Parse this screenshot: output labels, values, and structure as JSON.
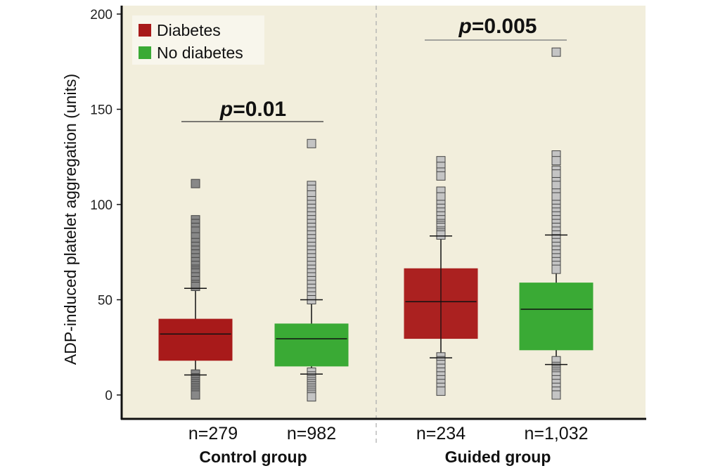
{
  "chart_data": {
    "type": "box",
    "ylabel": "ADP-induced platelet aggregation (units)",
    "ylim": [
      0,
      200
    ],
    "yticks": [
      0,
      50,
      100,
      150,
      200
    ],
    "legend": {
      "placement": "top-left",
      "entries": [
        {
          "label": "Diabetes",
          "color": "#a81a1a"
        },
        {
          "label": "No diabetes",
          "color": "#3aaa35"
        }
      ]
    },
    "groups": [
      {
        "label": "Control group",
        "p_value": "=0.01",
        "p_symbol": "p",
        "boxes": [
          {
            "series": "Diabetes",
            "n_label": "n=279",
            "q1": 18,
            "median": 32,
            "q3": 40,
            "whisker_low": 10.5,
            "whisker_high": 56,
            "outliers": [
              111,
              92,
              90,
              88,
              86,
              83,
              80,
              78,
              76,
              74,
              72,
              70,
              68,
              66,
              65,
              64,
              62,
              60,
              58,
              57,
              11,
              9,
              7,
              6,
              5,
              4,
              3,
              2,
              1,
              0
            ]
          },
          {
            "series": "No diabetes",
            "n_label": "n=982",
            "q1": 15,
            "median": 29.5,
            "q3": 37.5,
            "whisker_low": 11,
            "whisker_high": 50,
            "outliers": [
              132,
              110,
              108,
              105,
              102,
              100,
              98,
              96,
              94,
              92,
              90,
              88,
              86,
              84,
              82,
              80,
              78,
              76,
              74,
              72,
              70,
              68,
              66,
              64,
              62,
              60,
              58,
              56,
              54,
              52,
              50,
              12,
              10,
              8,
              7,
              6,
              5,
              4,
              3,
              2,
              1,
              0,
              -1
            ]
          }
        ]
      },
      {
        "label": "Guided group",
        "p_value": "=0.005",
        "p_symbol": "p",
        "boxes": [
          {
            "series": "Diabetes",
            "n_label": "n=234",
            "q1": 29.5,
            "median": 49,
            "q3": 66.5,
            "whisker_low": 19.5,
            "whisker_high": 83.5,
            "outliers": [
              123,
              120,
              117,
              115,
              107,
              104,
              100,
              98,
              96,
              94,
              92,
              90,
              89,
              88,
              86,
              85,
              84,
              20,
              18,
              16,
              14,
              12,
              10,
              8,
              6,
              4,
              2
            ]
          },
          {
            "series": "No diabetes",
            "n_label": "n=1,032",
            "q1": 23.5,
            "median": 45,
            "q3": 59,
            "whisker_low": 16,
            "whisker_high": 84,
            "outliers": [
              180,
              126,
              123,
              118,
              116,
              112,
              110,
              106,
              104,
              100,
              98,
              96,
              94,
              92,
              90,
              88,
              86,
              84,
              82,
              80,
              78,
              76,
              74,
              72,
              70,
              68,
              66,
              18,
              15,
              14,
              13,
              12,
              11,
              10,
              8,
              6,
              4,
              2,
              0
            ]
          }
        ]
      }
    ],
    "grid": false
  }
}
